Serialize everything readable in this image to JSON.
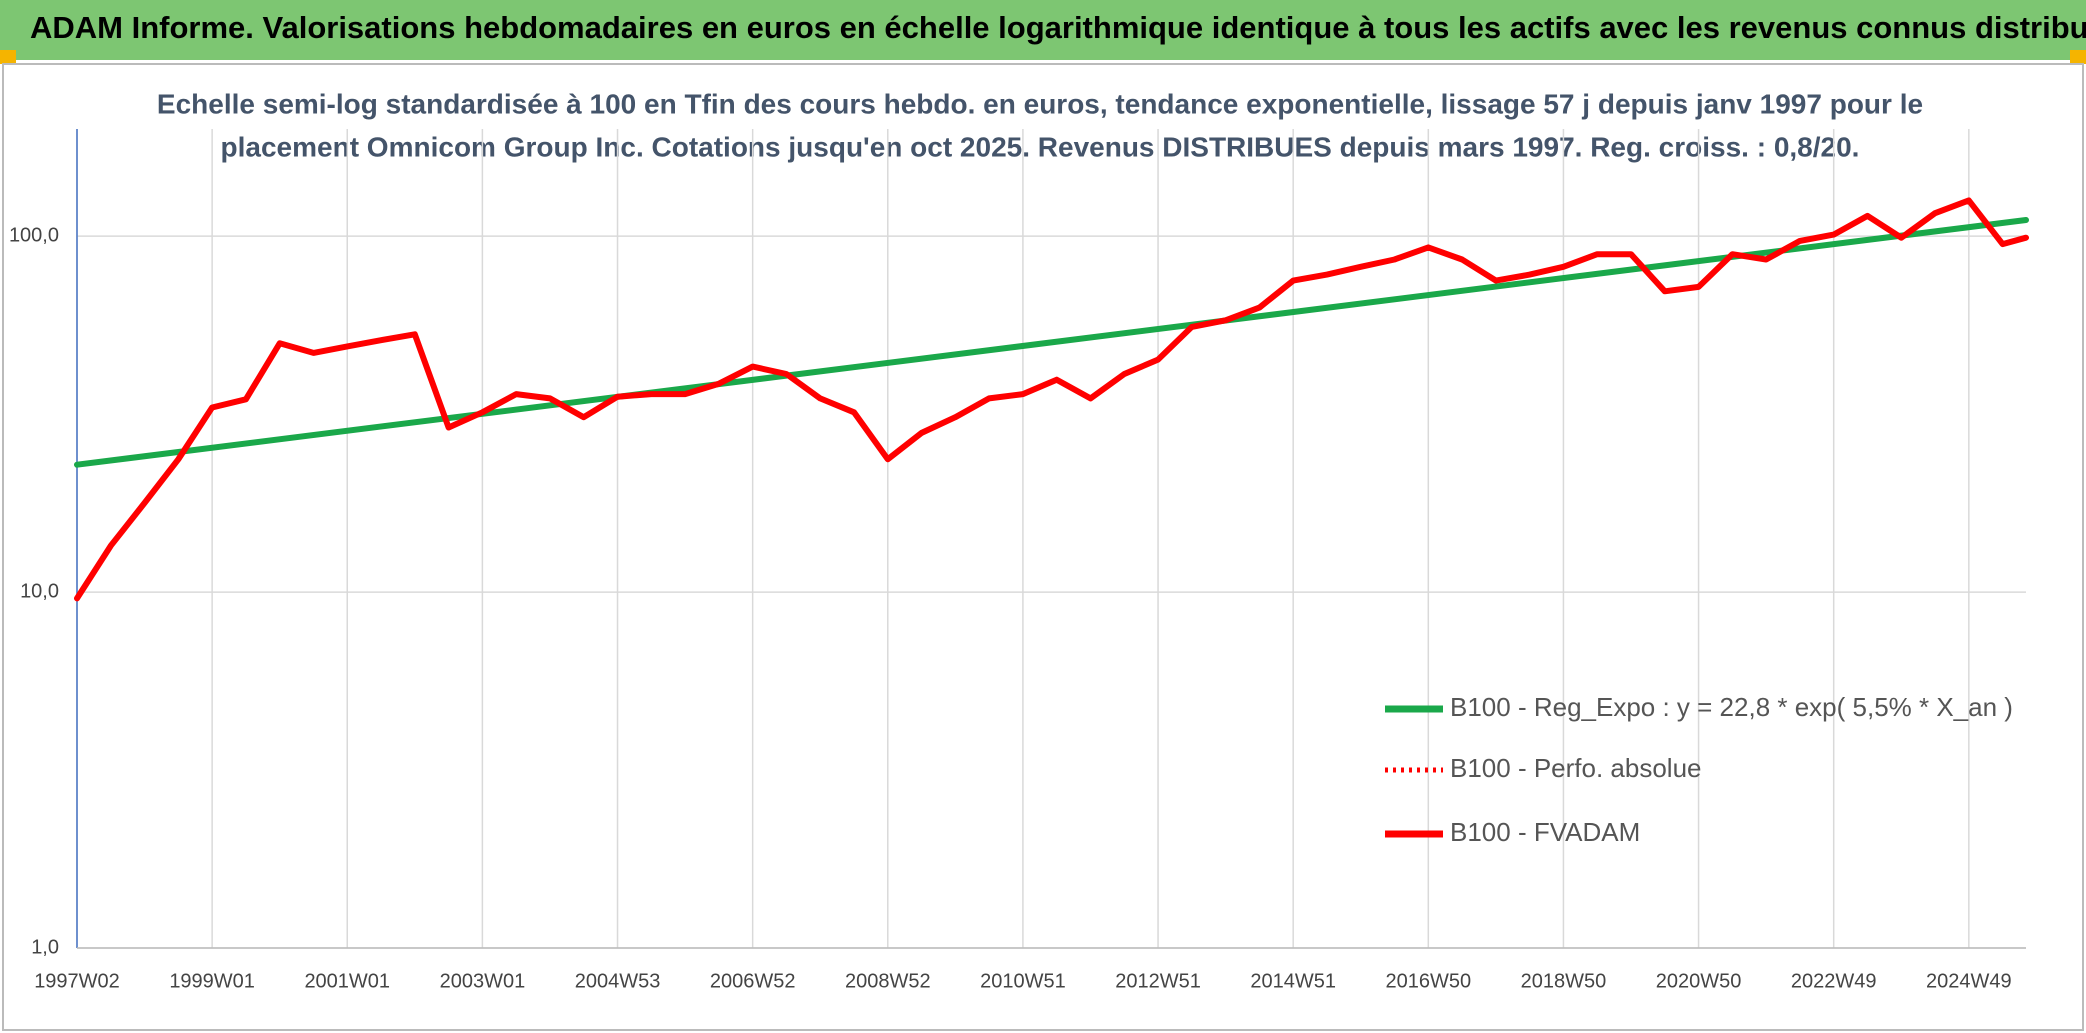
{
  "chart_data": {
    "type": "line",
    "title": "ADAM Informe. Valorisations hebdomadaires en euros en échelle logarithmique identique à tous les actifs avec les revenus connus distribués",
    "subtitle": [
      "Echelle semi-log standardisée à 100 en Tfin des cours hebdo. en euros, tendance exponentielle, lissage 57 j depuis janv 1997 pour le",
      "placement Omnicom Group Inc. Cotations jusqu'en oct 2025. Revenus DISTRIBUES depuis mars 1997. Reg. croiss. : 0,8/20."
    ],
    "log_scale": true,
    "grid": true,
    "legend": "right",
    "xlim": [
      0,
      1500
    ],
    "xticks": [
      {
        "value": 0,
        "label": "1997W02"
      },
      {
        "value": 104,
        "label": "1999W01"
      },
      {
        "value": 208,
        "label": "2001W01"
      },
      {
        "value": 312,
        "label": "2003W01"
      },
      {
        "value": 416,
        "label": "2004W53"
      },
      {
        "value": 520,
        "label": "2006W52"
      },
      {
        "value": 624,
        "label": "2008W52"
      },
      {
        "value": 728,
        "label": "2010W51"
      },
      {
        "value": 832,
        "label": "2012W51"
      },
      {
        "value": 936,
        "label": "2014W51"
      },
      {
        "value": 1040,
        "label": "2016W50"
      },
      {
        "value": 1144,
        "label": "2018W50"
      },
      {
        "value": 1248,
        "label": "2020W50"
      },
      {
        "value": 1352,
        "label": "2022W49"
      },
      {
        "value": 1456,
        "label": "2024W49"
      }
    ],
    "ylim": [
      1,
      200
    ],
    "yticks": [
      {
        "value": 1,
        "label": "1,0"
      },
      {
        "value": 10,
        "label": "10,0"
      },
      {
        "value": 100,
        "label": "100,0"
      }
    ],
    "series": [
      {
        "name": "B100 - Reg_Expo : y = 22,8 * exp( 5,5% *  X_an )",
        "color": "#1aa84a",
        "style": "solid",
        "x": [
          0,
          1500
        ],
        "values": [
          22.8,
          111
        ]
      },
      {
        "name": "B100 - Perfo. absolue",
        "color": "#ff0000",
        "style": "dotted",
        "x": [
          0,
          26,
          52,
          78,
          104,
          130,
          156,
          182,
          208,
          234,
          260,
          286,
          312,
          338,
          364,
          390,
          416,
          442,
          468,
          494,
          520,
          546,
          572,
          598,
          624,
          650,
          676,
          702,
          728,
          754,
          780,
          806,
          832,
          858,
          884,
          910,
          936,
          962,
          988,
          1014,
          1040,
          1066,
          1092,
          1118,
          1144,
          1170,
          1196,
          1222,
          1248,
          1274,
          1300,
          1326,
          1352,
          1378,
          1404,
          1430,
          1456,
          1482,
          1500
        ],
        "values": [
          9.6,
          13.5,
          17.8,
          23.6,
          33,
          34.8,
          50,
          47,
          49,
          51,
          53,
          29,
          32,
          36,
          35,
          31,
          35.4,
          36,
          36,
          38.5,
          43,
          41,
          35,
          32,
          23.6,
          28,
          31,
          35,
          36,
          39.5,
          35,
          41,
          45,
          55.6,
          58,
          63,
          75,
          78,
          82,
          86,
          93,
          86,
          75,
          78,
          82,
          89,
          89,
          70,
          72,
          89,
          86,
          97,
          101,
          114,
          99,
          116,
          126,
          95,
          99
        ]
      },
      {
        "name": "B100 - FVADAM",
        "color": "#ff0000",
        "style": "solid",
        "x": [
          0,
          26,
          52,
          78,
          104,
          130,
          156,
          182,
          208,
          234,
          260,
          286,
          312,
          338,
          364,
          390,
          416,
          442,
          468,
          494,
          520,
          546,
          572,
          598,
          624,
          650,
          676,
          702,
          728,
          754,
          780,
          806,
          832,
          858,
          884,
          910,
          936,
          962,
          988,
          1014,
          1040,
          1066,
          1092,
          1118,
          1144,
          1170,
          1196,
          1222,
          1248,
          1274,
          1300,
          1326,
          1352,
          1378,
          1404,
          1430,
          1456,
          1482,
          1500
        ],
        "values": [
          9.6,
          13.5,
          17.8,
          23.6,
          33,
          34.8,
          50,
          47,
          49,
          51,
          53,
          29,
          32,
          36,
          35,
          31,
          35.4,
          36,
          36,
          38.5,
          43,
          41,
          35,
          32,
          23.6,
          28,
          31,
          35,
          36,
          39.5,
          35,
          41,
          45,
          55.6,
          58,
          63,
          75,
          78,
          82,
          86,
          93,
          86,
          75,
          78,
          82,
          89,
          89,
          70,
          72,
          89,
          86,
          97,
          101,
          114,
          99,
          116,
          126,
          95,
          99
        ]
      }
    ]
  }
}
